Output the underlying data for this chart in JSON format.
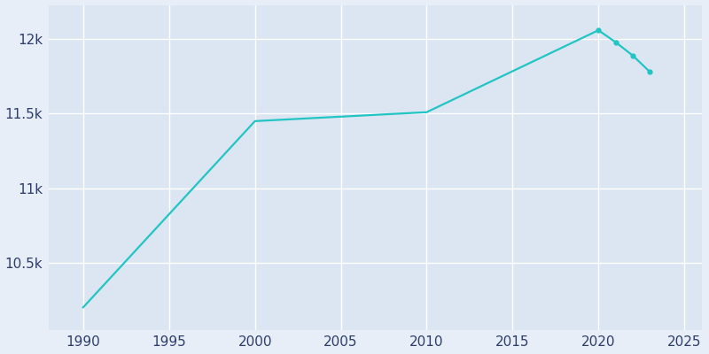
{
  "years": [
    1990,
    2000,
    2010,
    2020,
    2021,
    2022,
    2023
  ],
  "population": [
    10200,
    11450,
    11510,
    12060,
    11980,
    11890,
    11780
  ],
  "line_color": "#22c4c4",
  "marker_style": "o",
  "marker_size": 3.5,
  "line_width": 1.6,
  "fig_bg_color": "#e8eef7",
  "plot_bg_color": "#dce6f2",
  "grid_color": "#ffffff",
  "xlim": [
    1988,
    2026
  ],
  "ylim": [
    10050,
    12230
  ],
  "xticks": [
    1990,
    1995,
    2000,
    2005,
    2010,
    2015,
    2020,
    2025
  ],
  "ytick_values": [
    10500,
    11000,
    11500,
    12000
  ],
  "ytick_labels": [
    "10.5k",
    "11k",
    "11.5k",
    "12k"
  ],
  "tick_label_color": "#2d3d6b",
  "tick_label_fontsize": 11,
  "marker_years": [
    2020,
    2021,
    2022,
    2023
  ]
}
